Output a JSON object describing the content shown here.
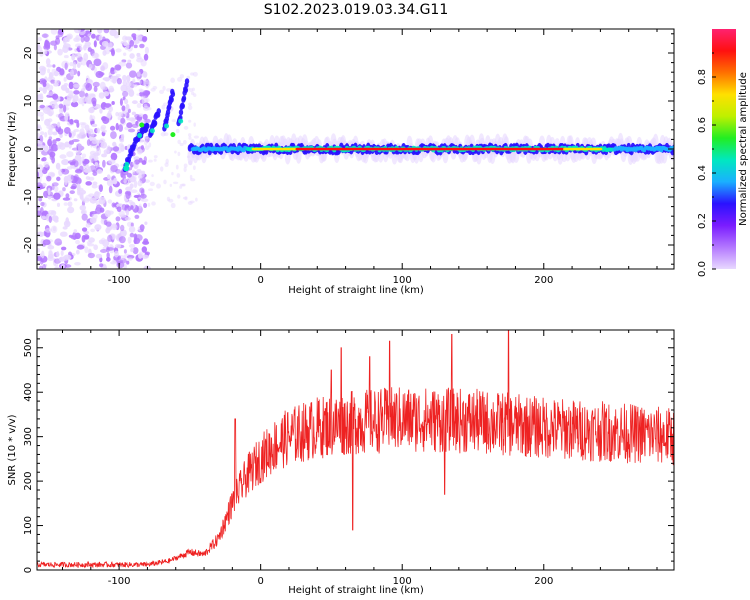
{
  "title": "S102.2023.019.03.34.G11",
  "colors": {
    "snr_line": "#ee2222",
    "colormap": [
      "#e8d8ff",
      "#b377ff",
      "#7a1cff",
      "#2a12ff",
      "#1ab0ff",
      "#00e8c0",
      "#22ee22",
      "#bff000",
      "#ffe000",
      "#ff7000",
      "#ff1010",
      "#ff2270"
    ]
  },
  "chart_data": [
    {
      "type": "heatmap",
      "xlabel": "Height of straight line (km)",
      "ylabel": "Frequency (Hz)",
      "xlim": [
        -158,
        292
      ],
      "ylim": [
        -25,
        25
      ],
      "xticks": [
        -100,
        0,
        100,
        200
      ],
      "yticks": [
        -20,
        -10,
        0,
        10,
        20
      ],
      "colorbar": {
        "label": "Normalized spectral amplitude",
        "range": [
          0,
          1
        ],
        "ticks": [
          "0.0",
          "0.2",
          "0.4",
          "0.6",
          "0.8"
        ]
      },
      "features": {
        "noise_region_x": [
          -158,
          -88
        ],
        "carrier_freq_hz": 0,
        "carrier_from_x": -50,
        "tilted_streaks": [
          {
            "x": [
              -96,
              -88
            ],
            "freq": [
              -4,
              2
            ]
          },
          {
            "x": [
              -87,
              -80
            ],
            "freq": [
              2,
              5
            ]
          },
          {
            "x": [
              -78,
              -72
            ],
            "freq": [
              3,
              8
            ]
          },
          {
            "x": [
              -68,
              -62
            ],
            "freq": [
              4,
              12
            ]
          },
          {
            "x": [
              -58,
              -52
            ],
            "freq": [
              5,
              14
            ]
          }
        ]
      }
    },
    {
      "type": "line",
      "name": "",
      "xlabel": "Height of straight line (km)",
      "ylabel": "SNR (10 * v/v)",
      "xlim": [
        -158,
        292
      ],
      "ylim": [
        0,
        540
      ],
      "xticks": [
        -100,
        0,
        100,
        200
      ],
      "yticks": [
        0,
        100,
        200,
        300,
        400,
        500
      ],
      "envelope": [
        {
          "x": -158,
          "y": 12
        },
        {
          "x": -80,
          "y": 12
        },
        {
          "x": -65,
          "y": 20
        },
        {
          "x": -50,
          "y": 40
        },
        {
          "x": -40,
          "y": 35
        },
        {
          "x": -30,
          "y": 70
        },
        {
          "x": -20,
          "y": 150
        },
        {
          "x": -10,
          "y": 210
        },
        {
          "x": 0,
          "y": 250
        },
        {
          "x": 10,
          "y": 280
        },
        {
          "x": 20,
          "y": 300
        },
        {
          "x": 40,
          "y": 320
        },
        {
          "x": 60,
          "y": 330
        },
        {
          "x": 100,
          "y": 340
        },
        {
          "x": 150,
          "y": 335
        },
        {
          "x": 200,
          "y": 320
        },
        {
          "x": 250,
          "y": 310
        },
        {
          "x": 292,
          "y": 300
        }
      ],
      "spikes": [
        {
          "x": -18,
          "y": 340
        },
        {
          "x": 50,
          "y": 450
        },
        {
          "x": 57,
          "y": 500
        },
        {
          "x": 65,
          "y": 90
        },
        {
          "x": 77,
          "y": 480
        },
        {
          "x": 91,
          "y": 515
        },
        {
          "x": 135,
          "y": 530
        },
        {
          "x": 175,
          "y": 540
        },
        {
          "x": 130,
          "y": 170
        }
      ]
    }
  ]
}
